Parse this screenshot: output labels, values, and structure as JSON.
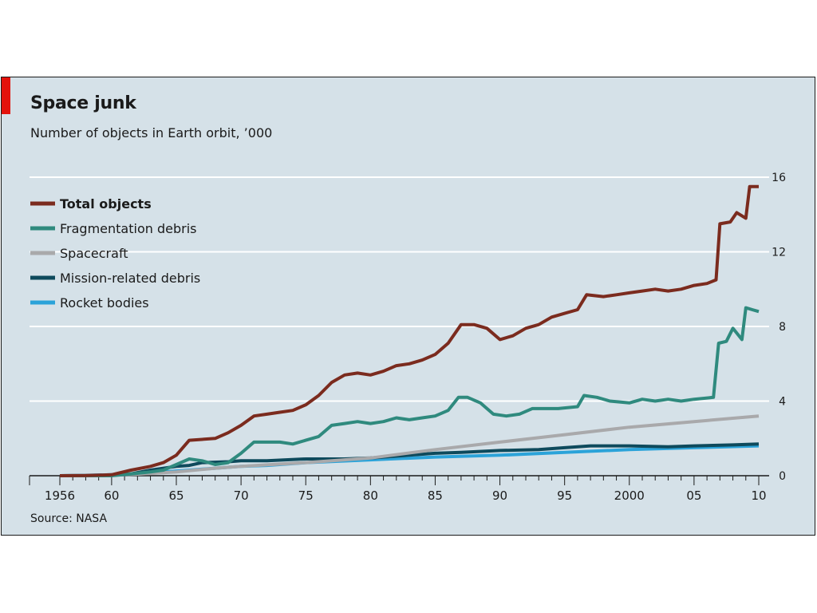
{
  "title": "Space junk",
  "subtitle": "Number of objects in Earth orbit, ’000",
  "source": "Source: NASA",
  "colors": {
    "background": "#d5e1e8",
    "accent_red": "#e3120b",
    "total": "#7b2b1e",
    "fragmentation": "#2f8a7e",
    "spacecraft": "#a9a9ab",
    "mission": "#0e4a5c",
    "rocket": "#2ba3d9"
  },
  "chart_data": {
    "type": "line",
    "title": "Space junk",
    "subtitle": "Number of objects in Earth orbit, ’000",
    "xlim": [
      1956,
      2010
    ],
    "ylim": [
      0,
      16
    ],
    "y_ticks": [
      0,
      4,
      8,
      12,
      16
    ],
    "x_ticks": [
      {
        "value": 1956,
        "label": "1956"
      },
      {
        "value": 1960,
        "label": "60"
      },
      {
        "value": 1965,
        "label": "65"
      },
      {
        "value": 1970,
        "label": "70"
      },
      {
        "value": 1975,
        "label": "75"
      },
      {
        "value": 1980,
        "label": "80"
      },
      {
        "value": 1985,
        "label": "85"
      },
      {
        "value": 1990,
        "label": "90"
      },
      {
        "value": 1995,
        "label": "95"
      },
      {
        "value": 2000,
        "label": "2000"
      },
      {
        "value": 2005,
        "label": "05"
      },
      {
        "value": 2010,
        "label": "10"
      }
    ],
    "y_axis_position": "right",
    "grid": true,
    "legend_position": "top-left",
    "series": [
      {
        "key": "rocket",
        "name": "Rocket bodies",
        "color": "#2ba3d9",
        "points": [
          [
            1956,
            0
          ],
          [
            1958,
            0.02
          ],
          [
            1960,
            0.05
          ],
          [
            1962,
            0.1
          ],
          [
            1964,
            0.2
          ],
          [
            1966,
            0.3
          ],
          [
            1968,
            0.4
          ],
          [
            1970,
            0.5
          ],
          [
            1972,
            0.55
          ],
          [
            1975,
            0.7
          ],
          [
            1980,
            0.85
          ],
          [
            1985,
            1.0
          ],
          [
            1990,
            1.1
          ],
          [
            1995,
            1.25
          ],
          [
            2000,
            1.4
          ],
          [
            2005,
            1.5
          ],
          [
            2010,
            1.6
          ]
        ]
      },
      {
        "key": "mission",
        "name": "Mission-related debris",
        "color": "#0e4a5c",
        "points": [
          [
            1956,
            0
          ],
          [
            1960,
            0.02
          ],
          [
            1961.5,
            0.1
          ],
          [
            1963,
            0.3
          ],
          [
            1965,
            0.5
          ],
          [
            1966,
            0.55
          ],
          [
            1967,
            0.7
          ],
          [
            1969,
            0.75
          ],
          [
            1970,
            0.8
          ],
          [
            1972,
            0.8
          ],
          [
            1975,
            0.9
          ],
          [
            1978,
            0.9
          ],
          [
            1980,
            0.95
          ],
          [
            1983,
            1.1
          ],
          [
            1985,
            1.2
          ],
          [
            1987,
            1.25
          ],
          [
            1990,
            1.35
          ],
          [
            1993,
            1.4
          ],
          [
            1995,
            1.5
          ],
          [
            1997,
            1.6
          ],
          [
            2000,
            1.6
          ],
          [
            2003,
            1.55
          ],
          [
            2005,
            1.6
          ],
          [
            2008,
            1.65
          ],
          [
            2010,
            1.7
          ]
        ]
      },
      {
        "key": "spacecraft",
        "name": "Spacecraft",
        "color": "#a9a9ab",
        "points": [
          [
            1956,
            0
          ],
          [
            1958,
            0.01
          ],
          [
            1960,
            0.03
          ],
          [
            1962,
            0.08
          ],
          [
            1965,
            0.2
          ],
          [
            1968,
            0.4
          ],
          [
            1970,
            0.5
          ],
          [
            1975,
            0.7
          ],
          [
            1980,
            0.95
          ],
          [
            1985,
            1.4
          ],
          [
            1990,
            1.8
          ],
          [
            1995,
            2.2
          ],
          [
            2000,
            2.6
          ],
          [
            2005,
            2.9
          ],
          [
            2010,
            3.2
          ]
        ]
      },
      {
        "key": "fragmentation",
        "name": "Fragmentation debris",
        "color": "#2f8a7e",
        "points": [
          [
            1956,
            0
          ],
          [
            1960,
            0
          ],
          [
            1961.5,
            0.1
          ],
          [
            1963,
            0.2
          ],
          [
            1964,
            0.3
          ],
          [
            1965,
            0.6
          ],
          [
            1966,
            0.9
          ],
          [
            1967,
            0.8
          ],
          [
            1968,
            0.6
          ],
          [
            1969,
            0.7
          ],
          [
            1970,
            1.2
          ],
          [
            1971,
            1.8
          ],
          [
            1973,
            1.8
          ],
          [
            1974,
            1.7
          ],
          [
            1975,
            1.9
          ],
          [
            1976,
            2.1
          ],
          [
            1977,
            2.7
          ],
          [
            1978,
            2.8
          ],
          [
            1979,
            2.9
          ],
          [
            1980,
            2.8
          ],
          [
            1981,
            2.9
          ],
          [
            1982,
            3.1
          ],
          [
            1983,
            3.0
          ],
          [
            1984,
            3.1
          ],
          [
            1985,
            3.2
          ],
          [
            1986,
            3.5
          ],
          [
            1986.8,
            4.2
          ],
          [
            1987.5,
            4.2
          ],
          [
            1988.5,
            3.9
          ],
          [
            1989.5,
            3.3
          ],
          [
            1990.5,
            3.2
          ],
          [
            1991.5,
            3.3
          ],
          [
            1992.5,
            3.6
          ],
          [
            1993.5,
            3.6
          ],
          [
            1994.5,
            3.6
          ],
          [
            1996,
            3.7
          ],
          [
            1996.5,
            4.3
          ],
          [
            1997.5,
            4.2
          ],
          [
            1998.5,
            4.0
          ],
          [
            2000,
            3.9
          ],
          [
            2001,
            4.1
          ],
          [
            2002,
            4.0
          ],
          [
            2003,
            4.1
          ],
          [
            2004,
            4.0
          ],
          [
            2005,
            4.1
          ],
          [
            2006.5,
            4.2
          ],
          [
            2006.9,
            7.1
          ],
          [
            2007.5,
            7.2
          ],
          [
            2008,
            7.9
          ],
          [
            2008.7,
            7.3
          ],
          [
            2009,
            9.0
          ],
          [
            2009.5,
            8.9
          ],
          [
            2010,
            8.8
          ]
        ]
      },
      {
        "key": "total",
        "name": "Total objects",
        "color": "#7b2b1e",
        "bold": true,
        "points": [
          [
            1956,
            0
          ],
          [
            1958,
            0.01
          ],
          [
            1960,
            0.05
          ],
          [
            1961.5,
            0.3
          ],
          [
            1963,
            0.5
          ],
          [
            1964,
            0.7
          ],
          [
            1965,
            1.1
          ],
          [
            1966,
            1.9
          ],
          [
            1968,
            2.0
          ],
          [
            1969,
            2.3
          ],
          [
            1970,
            2.7
          ],
          [
            1971,
            3.2
          ],
          [
            1972,
            3.3
          ],
          [
            1973,
            3.4
          ],
          [
            1974,
            3.5
          ],
          [
            1975,
            3.8
          ],
          [
            1976,
            4.3
          ],
          [
            1977,
            5.0
          ],
          [
            1978,
            5.4
          ],
          [
            1979,
            5.5
          ],
          [
            1980,
            5.4
          ],
          [
            1981,
            5.6
          ],
          [
            1982,
            5.9
          ],
          [
            1983,
            6.0
          ],
          [
            1984,
            6.2
          ],
          [
            1985,
            6.5
          ],
          [
            1986,
            7.1
          ],
          [
            1987,
            8.1
          ],
          [
            1988,
            8.1
          ],
          [
            1989,
            7.9
          ],
          [
            1990,
            7.3
          ],
          [
            1991,
            7.5
          ],
          [
            1992,
            7.9
          ],
          [
            1993,
            8.1
          ],
          [
            1994,
            8.5
          ],
          [
            1995,
            8.7
          ],
          [
            1996,
            8.9
          ],
          [
            1996.7,
            9.7
          ],
          [
            1998,
            9.6
          ],
          [
            1999,
            9.7
          ],
          [
            2000,
            9.8
          ],
          [
            2001,
            9.9
          ],
          [
            2002,
            10.0
          ],
          [
            2003,
            9.9
          ],
          [
            2004,
            10.0
          ],
          [
            2005,
            10.2
          ],
          [
            2006,
            10.3
          ],
          [
            2006.7,
            10.5
          ],
          [
            2007,
            13.5
          ],
          [
            2007.8,
            13.6
          ],
          [
            2008.3,
            14.1
          ],
          [
            2009,
            13.8
          ],
          [
            2009.3,
            15.5
          ],
          [
            2010,
            15.5
          ]
        ]
      }
    ]
  }
}
